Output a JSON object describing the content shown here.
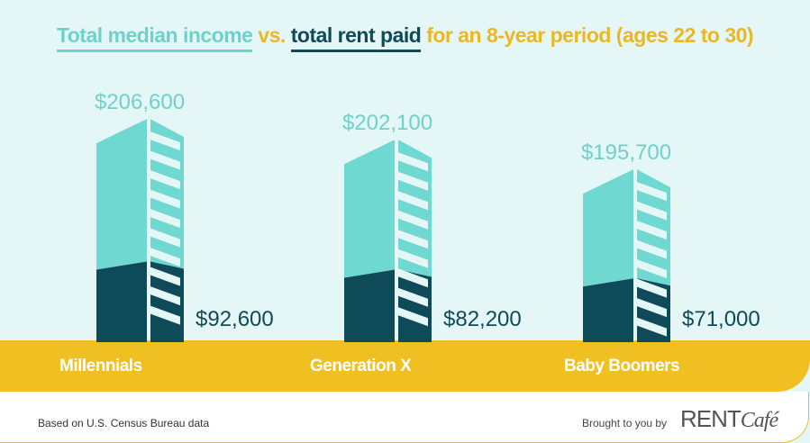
{
  "title": {
    "part_income": "Total median income",
    "part_vs": "vs.",
    "part_rent": "total rent paid",
    "part_rest": "for an 8-year period (ages 22 to 30)"
  },
  "chart_data": {
    "type": "bar",
    "title": "Total median income vs. total rent paid for an 8-year period (ages 22 to 30)",
    "categories": [
      "Millennials",
      "Generation X",
      "Baby Boomers"
    ],
    "series": [
      {
        "name": "Total median income",
        "values": [
          206600,
          202100,
          195700
        ],
        "labels": [
          "$206,600",
          "$202,100",
          "$195,700"
        ],
        "color": "#6fd8d0"
      },
      {
        "name": "Total rent paid",
        "values": [
          92600,
          82200,
          71000
        ],
        "labels": [
          "$92,600",
          "$82,200",
          "$71,000"
        ],
        "color": "#0f4a59"
      }
    ]
  },
  "footer": {
    "source": "Based on U.S. Census Bureau data",
    "brought": "Brought to you by",
    "logo_main": "RENT",
    "logo_script": "Café"
  },
  "colors": {
    "background": "#e5f6f6",
    "band": "#f0c023",
    "income": "#6fd8d0",
    "rent": "#0f4a59"
  }
}
